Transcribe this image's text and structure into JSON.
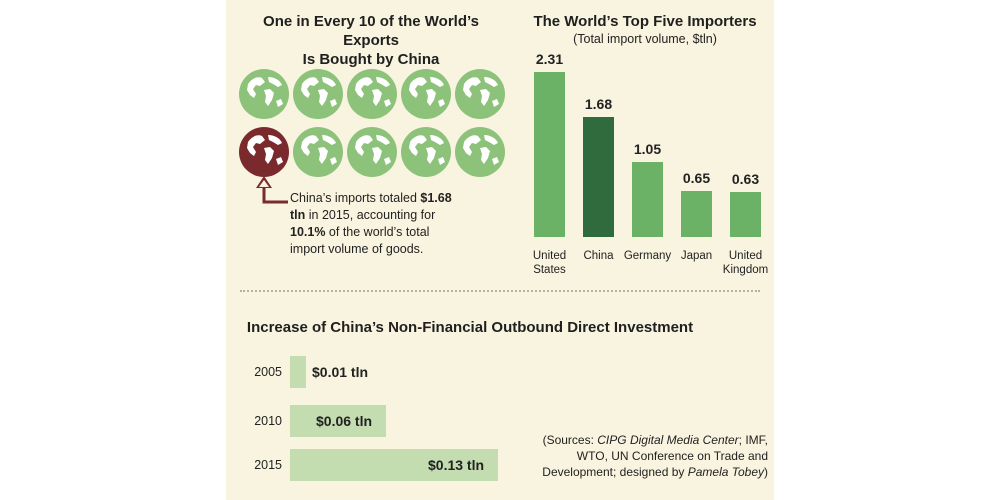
{
  "exports_panel": {
    "title_line1": "One in Every 10 of the World’s Exports",
    "title_line2": "Is Bought by China",
    "globes_total": 10,
    "globes_highlighted": 1,
    "globe_icon": "globe-icon",
    "colors": {
      "globe": "#8cc27a",
      "highlight": "#7a2a2c",
      "land": "#ffffff"
    },
    "note": {
      "p1": "China’s imports totaled ",
      "b1": "$1.68 tln",
      "p2": " in 2015, accounting for ",
      "b2": "10.1%",
      "p3": " of the world’s total import volume of goods."
    }
  },
  "chart_data": [
    {
      "type": "bar",
      "title": "The World’s Top Five Importers",
      "subtitle": "(Total import volume, $tln)",
      "categories": [
        "United States",
        "China",
        "Germany",
        "Japan",
        "United Kingdom"
      ],
      "category_lines": [
        [
          "United",
          "States"
        ],
        [
          "China"
        ],
        [
          "Germany"
        ],
        [
          "Japan"
        ],
        [
          "United",
          "Kingdom"
        ]
      ],
      "values": [
        2.31,
        1.68,
        1.05,
        0.65,
        0.63
      ],
      "value_labels": [
        "2.31",
        "1.68",
        "1.05",
        "0.65",
        "0.63"
      ],
      "highlight_index": 1,
      "colors": {
        "bar": "#6cb266",
        "highlight": "#2f6b3c"
      }
    },
    {
      "type": "bar",
      "orientation": "horizontal",
      "title": "Increase of China’s Non-Financial Outbound Direct Investment",
      "categories": [
        "2005",
        "2010",
        "2015"
      ],
      "values": [
        0.01,
        0.06,
        0.13
      ],
      "value_labels": [
        "$0.01 tln",
        "$0.06 tln",
        "$0.13 tln"
      ],
      "colors": {
        "bar": "#c3dcb0"
      }
    }
  ],
  "sources": {
    "s1": "(Sources: ",
    "i1": "CIPG Digital Media Center",
    "s2": "; IMF, WTO, UN Conference on Trade and Development; designed by ",
    "i2": "Pamela Tobey",
    "s3": ")"
  }
}
